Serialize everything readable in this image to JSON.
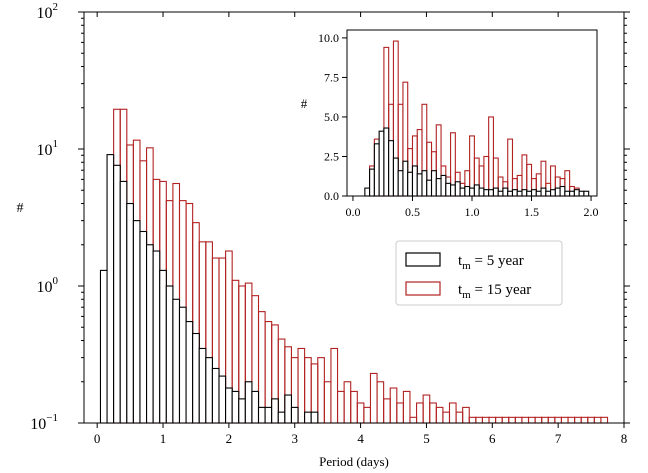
{
  "chart_data": [
    {
      "type": "bar",
      "subtype": "histogram-step",
      "yscale": "log",
      "xlabel": "Period (days)",
      "ylabel": "#",
      "xlim": [
        -0.2,
        8.0
      ],
      "ylim": [
        0.1,
        100
      ],
      "x_ticks": [
        "0",
        "1",
        "2",
        "3",
        "4",
        "5",
        "6",
        "7",
        "8"
      ],
      "y_ticks": [
        {
          "base": "10",
          "exp": "−1",
          "value": 0.1
        },
        {
          "base": "10",
          "exp": "0",
          "value": 1
        },
        {
          "base": "10",
          "exp": "1",
          "value": 10
        },
        {
          "base": "10",
          "exp": "2",
          "value": 100
        }
      ],
      "grid": false,
      "legend": "center-right",
      "bin_width": 0.1,
      "series": [
        {
          "name": "t_m = 5 year",
          "label_main": "t",
          "label_sub": "m",
          "label_rest": " = 5 year",
          "color": "#000000",
          "bins_start": 0.05,
          "values": [
            1.3,
            9.1,
            7.6,
            5.8,
            4.0,
            3.0,
            2.5,
            2.0,
            1.8,
            1.3,
            1.0,
            0.8,
            0.7,
            0.55,
            0.45,
            0.35,
            0.3,
            0.25,
            0.22,
            0.18,
            0.17,
            0.15,
            0.2,
            0.17,
            0.13,
            0.13,
            0.15,
            0.12,
            0.16,
            0.13,
            0.1,
            0.12,
            0.12
          ]
        },
        {
          "name": "t_m = 15 year",
          "label_main": "t",
          "label_sub": "m",
          "label_rest": " = 15 year",
          "color": "#b22222",
          "bins_start": 0.15,
          "values": [
            4.6,
            19.5,
            19.5,
            10.7,
            11.6,
            8.2,
            10.2,
            6.0,
            5.8,
            4.2,
            5.6,
            4.2,
            4.0,
            2.9,
            2.1,
            2.1,
            1.6,
            1.6,
            1.8,
            1.1,
            1.0,
            1.05,
            0.85,
            0.65,
            0.55,
            0.52,
            0.41,
            0.36,
            0.3,
            0.35,
            0.3,
            0.27,
            0.3,
            0.2,
            0.35,
            0.17,
            0.2,
            0.17,
            0.14,
            0.13,
            0.23,
            0.2,
            0.15,
            0.18,
            0.14,
            0.17,
            0.11,
            0.14,
            0.16,
            0.14,
            0.13,
            0.12,
            0.14,
            0.12,
            0.13,
            0.11,
            0.11,
            0.11,
            0.11,
            0.11,
            0.11,
            0.11,
            0.11,
            0.11,
            0.11,
            0.11,
            0.11,
            0.11,
            0.11,
            0.11,
            0.11,
            0.11,
            0.11,
            0.11,
            0.11,
            0.11
          ]
        }
      ]
    },
    {
      "type": "bar",
      "subtype": "histogram-step",
      "role": "inset",
      "yscale": "linear",
      "xlabel": "",
      "ylabel": "#",
      "xlim": [
        -0.05,
        2.05
      ],
      "ylim": [
        0,
        10.5
      ],
      "x_ticks": [
        "0.0",
        "0.5",
        "1.0",
        "1.5",
        "2.0"
      ],
      "y_ticks": [
        "0.0",
        "2.5",
        "5.0",
        "7.5",
        "10.0"
      ],
      "bin_width": 0.04,
      "series": [
        {
          "name": "t_m = 5 year",
          "color": "#000000",
          "bins_start": 0.1,
          "values": [
            0.5,
            1.7,
            3.3,
            4.1,
            4.3,
            3.5,
            2.4,
            1.6,
            2.2,
            1.5,
            1.9,
            1.4,
            1.6,
            1.0,
            1.6,
            1.1,
            1.3,
            0.8,
            0.7,
            0.9,
            0.5,
            0.6,
            0.5,
            0.7,
            0.5,
            0.4,
            0.4,
            0.5,
            0.3,
            0.5,
            0.3,
            0.4,
            0.3,
            0.4,
            0.3,
            0.4,
            0.3,
            0.5,
            0.3,
            0.4,
            0.5,
            0.6,
            0.3,
            0.3,
            0.4,
            0.3,
            0.3
          ]
        },
        {
          "name": "t_m = 15 year",
          "color": "#b22222",
          "bins_start": 0.14,
          "values": [
            1.9,
            3.6,
            2.6,
            9.4,
            5.8,
            9.8,
            5.8,
            7.2,
            3.0,
            3.8,
            4.2,
            5.8,
            3.4,
            2.8,
            4.5,
            1.9,
            1.2,
            4.0,
            1.5,
            0.8,
            1.6,
            3.8,
            2.4,
            1.9,
            2.5,
            5.0,
            2.4,
            1.2,
            0.9,
            3.6,
            1.1,
            1.3,
            2.6,
            2.0,
            1.1,
            1.4,
            2.2,
            0.8,
            1.9,
            1.2,
            1.1,
            1.6,
            0.6,
            0.5
          ]
        }
      ]
    }
  ]
}
